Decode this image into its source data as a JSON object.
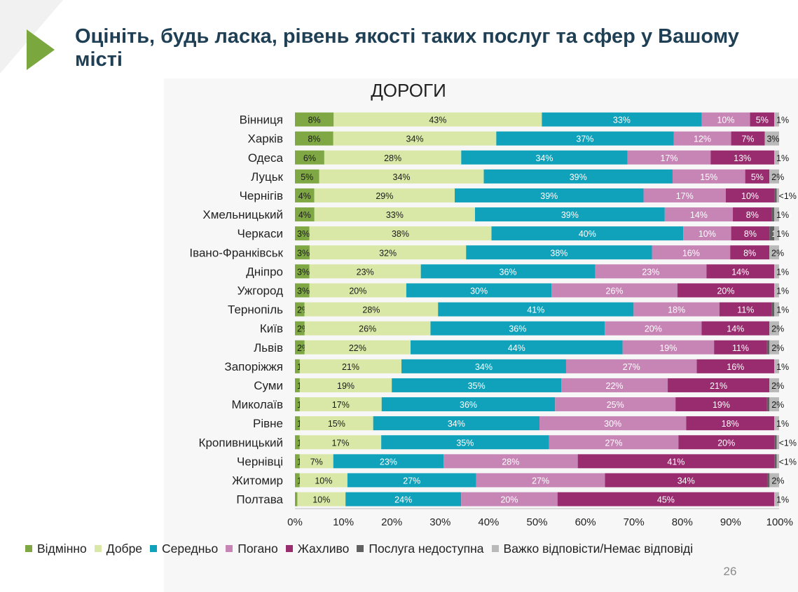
{
  "page": {
    "title": "Оцініть, будь ласка, рівень якості таких послуг та сфер у Вашому місті",
    "page_number": "26"
  },
  "colors": {
    "title": "#1f3f55",
    "arrow": "#7aa83f",
    "series": [
      "#7fa844",
      "#d9e8a6",
      "#10a2bb",
      "#c785b6",
      "#992b6f",
      "#606060",
      "#b9b9b9"
    ]
  },
  "chart_data": {
    "type": "bar",
    "orientation": "horizontal",
    "stacked": "percent",
    "title": "ДОРОГИ",
    "categories": [
      "Вінниця",
      "Харків",
      "Одеса",
      "Луцьк",
      "Чернігів",
      "Хмельницький",
      "Черкаси",
      "Івано-Франківськ",
      "Дніпро",
      "Ужгород",
      "Тернопіль",
      "Київ",
      "Львів",
      "Запоріжжя",
      "Суми",
      "Миколаїв",
      "Рівне",
      "Кропивницький",
      "Чернівці",
      "Житомир",
      "Полтава"
    ],
    "series": [
      {
        "name": "Відмінно",
        "values": [
          8,
          8,
          6,
          5,
          4,
          4,
          3,
          3,
          3,
          3,
          2,
          2,
          2,
          1,
          1,
          1,
          1,
          1,
          1,
          1,
          0.5
        ],
        "labels": [
          "8%",
          "8%",
          "6%",
          "5%",
          "4%",
          "4%",
          "3%",
          "3%",
          "3%",
          "3%",
          "2%",
          "2%",
          "2%",
          "1%",
          "1%",
          "1%",
          "1%",
          "1%",
          "1%",
          "1%",
          "<1%"
        ]
      },
      {
        "name": "Добре",
        "values": [
          43,
          34,
          28,
          34,
          29,
          33,
          38,
          32,
          23,
          20,
          28,
          26,
          22,
          21,
          19,
          17,
          15,
          17,
          7,
          10,
          10
        ],
        "labels": [
          "43%",
          "34%",
          "28%",
          "34%",
          "29%",
          "33%",
          "38%",
          "32%",
          "23%",
          "20%",
          "28%",
          "26%",
          "22%",
          "21%",
          "19%",
          "17%",
          "15%",
          "17%",
          "7%",
          "10%",
          "10%"
        ]
      },
      {
        "name": "Середньо",
        "values": [
          33,
          37,
          34,
          39,
          39,
          39,
          40,
          38,
          36,
          30,
          41,
          36,
          44,
          34,
          35,
          36,
          34,
          35,
          23,
          27,
          24
        ],
        "labels": [
          "33%",
          "37%",
          "34%",
          "39%",
          "39%",
          "39%",
          "40%",
          "38%",
          "36%",
          "30%",
          "41%",
          "36%",
          "44%",
          "34%",
          "35%",
          "36%",
          "34%",
          "35%",
          "23%",
          "27%",
          "24%"
        ]
      },
      {
        "name": "Погано",
        "values": [
          10,
          12,
          17,
          15,
          17,
          14,
          10,
          16,
          23,
          26,
          18,
          20,
          19,
          27,
          22,
          25,
          30,
          27,
          28,
          27,
          20
        ],
        "labels": [
          "10%",
          "12%",
          "17%",
          "15%",
          "17%",
          "14%",
          "10%",
          "16%",
          "23%",
          "26%",
          "18%",
          "20%",
          "19%",
          "27%",
          "22%",
          "25%",
          "30%",
          "27%",
          "28%",
          "27%",
          "20%"
        ]
      },
      {
        "name": "Жахливо",
        "values": [
          5,
          7,
          13,
          5,
          10,
          8,
          8,
          8,
          14,
          20,
          11,
          14,
          11,
          16,
          21,
          19,
          18,
          20,
          41,
          34,
          45
        ],
        "labels": [
          "5%",
          "7%",
          "13%",
          "5%",
          "10%",
          "8%",
          "8%",
          "8%",
          "14%",
          "20%",
          "11%",
          "14%",
          "11%",
          "16%",
          "21%",
          "19%",
          "18%",
          "20%",
          "41%",
          "34%",
          "45%"
        ]
      },
      {
        "name": "Послуга недоступна",
        "values": [
          0,
          0,
          0,
          0,
          0.5,
          0.5,
          1,
          0,
          0,
          0,
          0.5,
          0,
          0.5,
          0,
          0,
          0.5,
          0,
          0.5,
          0.5,
          0.5,
          0
        ],
        "labels": [
          "",
          "",
          "",
          "",
          "<1%",
          "<1%",
          "1%",
          "",
          "",
          "",
          "<1%",
          "",
          "<1%",
          "",
          "",
          "<1%",
          "",
          "<1%",
          "<1%",
          "<1%",
          ""
        ]
      },
      {
        "name": "Важко відповісти/Немає відповіді",
        "values": [
          1,
          3,
          1,
          2,
          0.5,
          1,
          1,
          2,
          1,
          1,
          1,
          2,
          2,
          1,
          2,
          2,
          1,
          0.5,
          0.5,
          2,
          1
        ],
        "labels": [
          "1%",
          "3%",
          "1%",
          "2%",
          "<1%",
          "1%",
          "1%",
          "2%",
          "1%",
          "1%",
          "1%",
          "2%",
          "2%",
          "1%",
          "2%",
          "2%",
          "1%",
          "<1%",
          "<1%",
          "2%",
          "1%"
        ]
      }
    ],
    "x_ticks": [
      "0%",
      "10%",
      "20%",
      "30%",
      "40%",
      "50%",
      "60%",
      "70%",
      "80%",
      "90%",
      "100%"
    ],
    "xlim": [
      0,
      100
    ],
    "grid": false,
    "legend_position": "bottom"
  }
}
